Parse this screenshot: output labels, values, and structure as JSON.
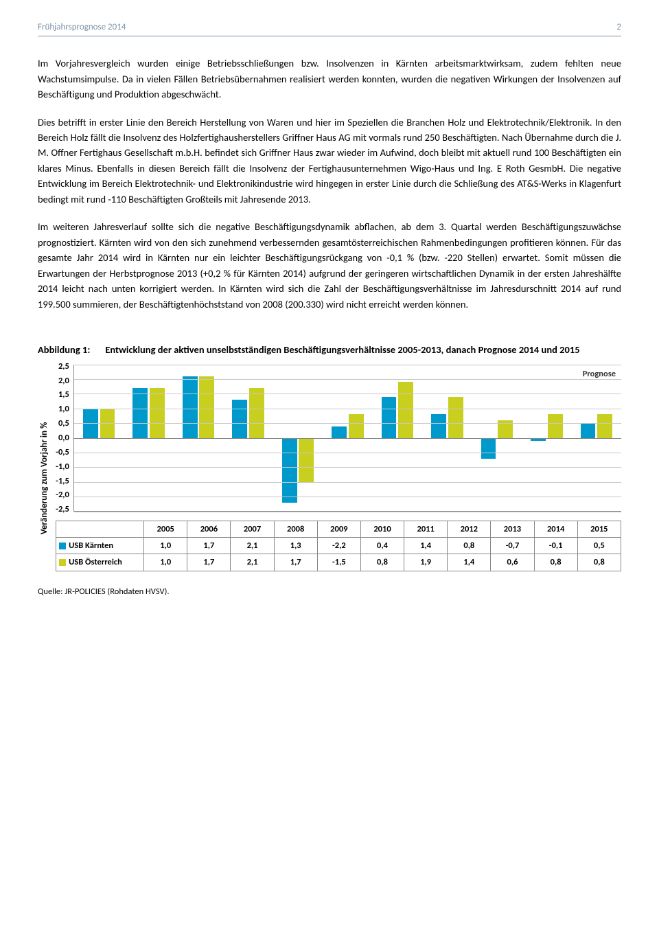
{
  "header": {
    "title": "Frühjahrsprognose 2014",
    "page": "2"
  },
  "paragraphs": [
    "Im Vorjahresvergleich wurden einige Betriebsschließungen bzw. Insolvenzen in Kärnten arbeitsmarktwirksam, zudem fehlten neue Wachstumsimpulse. Da in vielen Fällen Betriebsübernahmen realisiert werden konnten, wurden die negativen Wirkungen der Insolvenzen auf Beschäftigung und Produktion abgeschwächt.",
    "Dies betrifft in erster Linie den Bereich Herstellung von Waren und hier im Speziellen die Branchen Holz und Elektrotechnik/Elektronik. In den Bereich Holz fällt die Insolvenz des Holzfertighausherstellers Griffner Haus AG mit vormals rund 250 Beschäftigten. Nach Übernahme durch die J. M. Offner Fertighaus Gesellschaft m.b.H. befindet sich Griffner Haus zwar wieder im Aufwind, doch bleibt mit aktuell rund 100 Beschäftigten ein klares Minus. Ebenfalls in diesen Bereich fällt die Insolvenz der Fertighausunternehmen Wigo-Haus und Ing. E Roth GesmbH. Die negative Entwicklung im Bereich Elektrotechnik- und Elektronikindustrie wird hingegen in erster Linie durch die Schließung des AT&S-Werks in Klagenfurt bedingt mit rund -110 Beschäftigten Großteils mit Jahresende 2013.",
    "Im weiteren Jahresverlauf sollte sich die negative Beschäftigungsdynamik abflachen, ab dem 3. Quartal werden Beschäftigungszuwächse prognostiziert. Kärnten wird von den sich zunehmend verbessernden gesamtösterreichischen Rahmenbedingungen profitieren können. Für das gesamte Jahr 2014 wird in Kärnten nur ein leichter Beschäftigungsrückgang von -0,1 % (bzw. -220 Stellen) erwartet. Somit müssen die Erwartungen der Herbstprognose 2013 (+0,2 % für Kärnten 2014) aufgrund der geringeren wirtschaftlichen Dynamik in der ersten Jahreshälfte 2014 leicht nach unten korrigiert werden. In Kärnten wird sich die Zahl der Beschäftigungsverhältnisse im Jahresdurschnitt 2014 auf rund 199.500 summieren, der Beschäftigtenhöchststand von 2008 (200.330) wird nicht erreicht werden können."
  ],
  "figure": {
    "label": "Abbildung 1:",
    "title": "Entwicklung der aktiven unselbstständigen Beschäftigungsverhältnisse 2005-2013, danach Prognose 2014 und 2015",
    "y_axis_label": "Veränderung zum Vorjahr in %",
    "prognose_label": "Prognose",
    "source": "Quelle: JR-POLICIES (Rohdaten HVSV).",
    "ymin": -2.5,
    "ymax": 2.5,
    "ystep": 0.5,
    "y_ticks": [
      "2,5",
      "2,0",
      "1,5",
      "1,0",
      "0,5",
      "0,0",
      "-0,5",
      "-1,0",
      "-1,5",
      "-2,0",
      "-2,5"
    ],
    "years": [
      "2005",
      "2006",
      "2007",
      "2008",
      "2009",
      "2010",
      "2011",
      "2012",
      "2013",
      "2014",
      "2015"
    ],
    "series": [
      {
        "name": "USB Kärnten",
        "color": "#0099cc",
        "values": [
          1.0,
          1.7,
          2.1,
          1.3,
          -2.2,
          0.4,
          1.4,
          0.8,
          -0.7,
          -0.1,
          0.5
        ]
      },
      {
        "name": "USB Österreich",
        "color": "#c9cf1f",
        "values": [
          1.0,
          1.7,
          2.1,
          1.7,
          -1.5,
          0.8,
          1.9,
          1.4,
          0.6,
          0.8,
          0.8
        ]
      }
    ],
    "display": [
      [
        "1,0",
        "1,7",
        "2,1",
        "1,3",
        "-2,2",
        "0,4",
        "1,4",
        "0,8",
        "-0,7",
        "-0,1",
        "0,5"
      ],
      [
        "1,0",
        "1,7",
        "2,1",
        "1,7",
        "-1,5",
        "0,8",
        "1,9",
        "1,4",
        "0,6",
        "0,8",
        "0,8"
      ]
    ],
    "colors": {
      "grid": "#c8c8c8",
      "axis": "#888888",
      "bg": "#ffffff"
    }
  }
}
